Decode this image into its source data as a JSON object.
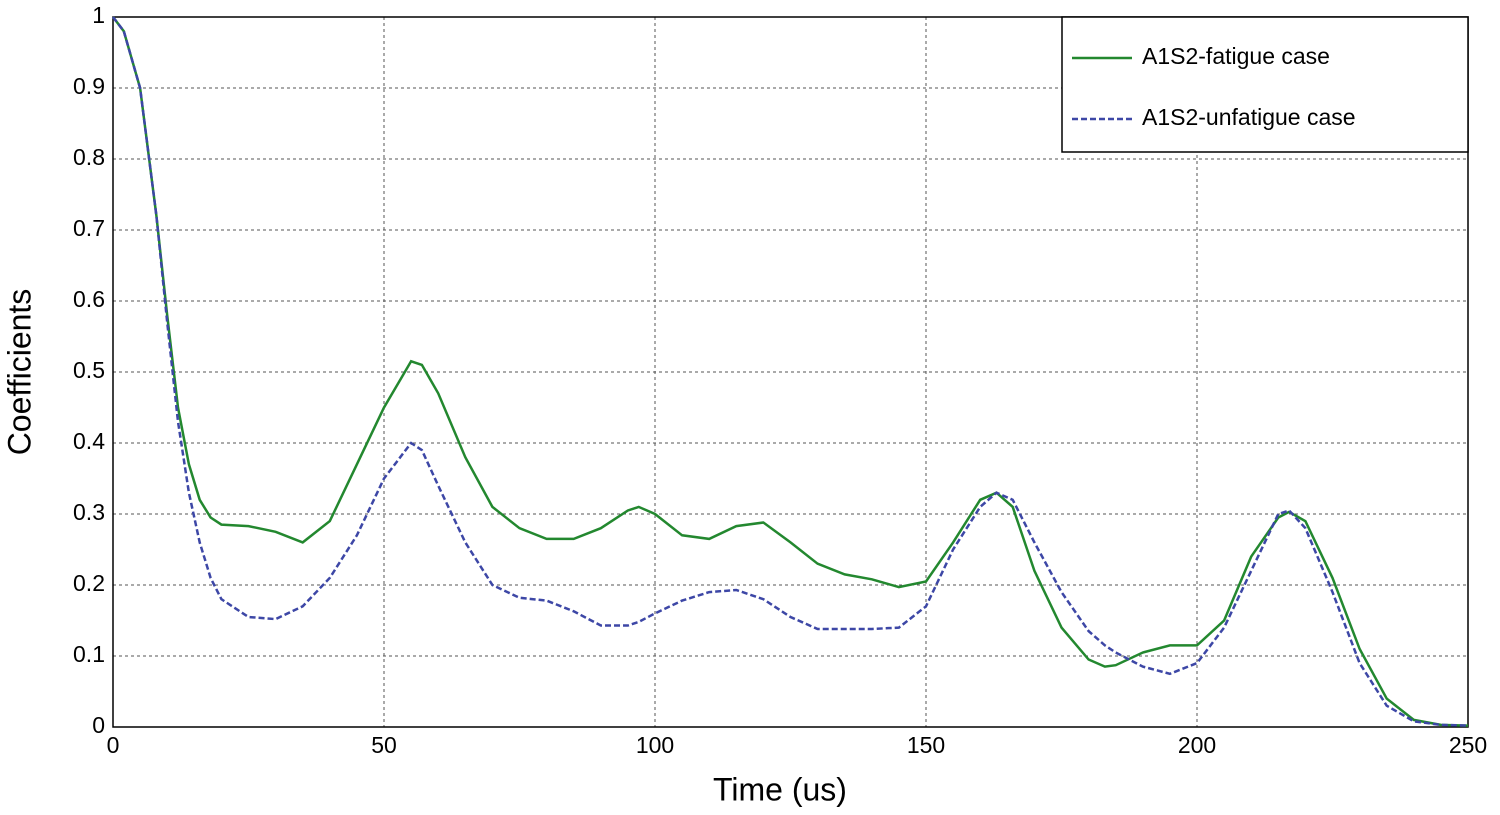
{
  "chart_data": {
    "type": "line",
    "x_label": "Time (us)",
    "y_label": "Coefficients",
    "x": [
      0,
      2,
      5,
      8,
      10,
      12,
      14,
      16,
      18,
      20,
      25,
      30,
      35,
      40,
      45,
      50,
      55,
      57,
      60,
      65,
      70,
      75,
      80,
      85,
      90,
      95,
      97,
      100,
      105,
      110,
      115,
      120,
      125,
      130,
      135,
      140,
      145,
      150,
      155,
      160,
      163,
      166,
      170,
      175,
      180,
      183,
      185,
      190,
      195,
      200,
      205,
      210,
      215,
      217,
      220,
      225,
      230,
      235,
      240,
      245,
      250
    ],
    "series": [
      {
        "name": "A1S2-fatigue case",
        "color": "#23882f",
        "dash": false,
        "values": [
          1.0,
          0.98,
          0.9,
          0.72,
          0.58,
          0.45,
          0.37,
          0.32,
          0.295,
          0.285,
          0.283,
          0.275,
          0.26,
          0.29,
          0.37,
          0.45,
          0.515,
          0.51,
          0.47,
          0.38,
          0.31,
          0.28,
          0.265,
          0.265,
          0.28,
          0.305,
          0.31,
          0.3,
          0.27,
          0.265,
          0.283,
          0.288,
          0.26,
          0.23,
          0.215,
          0.208,
          0.197,
          0.205,
          0.26,
          0.32,
          0.33,
          0.31,
          0.22,
          0.14,
          0.095,
          0.085,
          0.087,
          0.105,
          0.115,
          0.115,
          0.15,
          0.24,
          0.295,
          0.303,
          0.29,
          0.21,
          0.11,
          0.04,
          0.01,
          0.003,
          0.002
        ]
      },
      {
        "name": "A1S2-unfatigue case",
        "color": "#3d47a6",
        "dash": true,
        "values": [
          1.0,
          0.98,
          0.9,
          0.72,
          0.57,
          0.43,
          0.33,
          0.26,
          0.21,
          0.18,
          0.155,
          0.152,
          0.17,
          0.21,
          0.27,
          0.35,
          0.4,
          0.39,
          0.34,
          0.26,
          0.2,
          0.182,
          0.178,
          0.163,
          0.143,
          0.143,
          0.148,
          0.16,
          0.178,
          0.19,
          0.193,
          0.18,
          0.155,
          0.138,
          0.138,
          0.138,
          0.14,
          0.17,
          0.25,
          0.31,
          0.33,
          0.32,
          0.26,
          0.19,
          0.135,
          0.115,
          0.105,
          0.085,
          0.075,
          0.09,
          0.14,
          0.22,
          0.3,
          0.305,
          0.28,
          0.19,
          0.09,
          0.03,
          0.008,
          0.003,
          0.002
        ]
      }
    ],
    "xlim": [
      0,
      250
    ],
    "xticks": [
      0,
      50,
      100,
      150,
      200,
      250
    ],
    "ylim": [
      0,
      1
    ],
    "yticks": [
      0,
      0.1,
      0.2,
      0.3,
      0.4,
      0.5,
      0.6,
      0.7,
      0.8,
      0.9,
      1
    ],
    "grid": true,
    "legend": "top-right"
  }
}
